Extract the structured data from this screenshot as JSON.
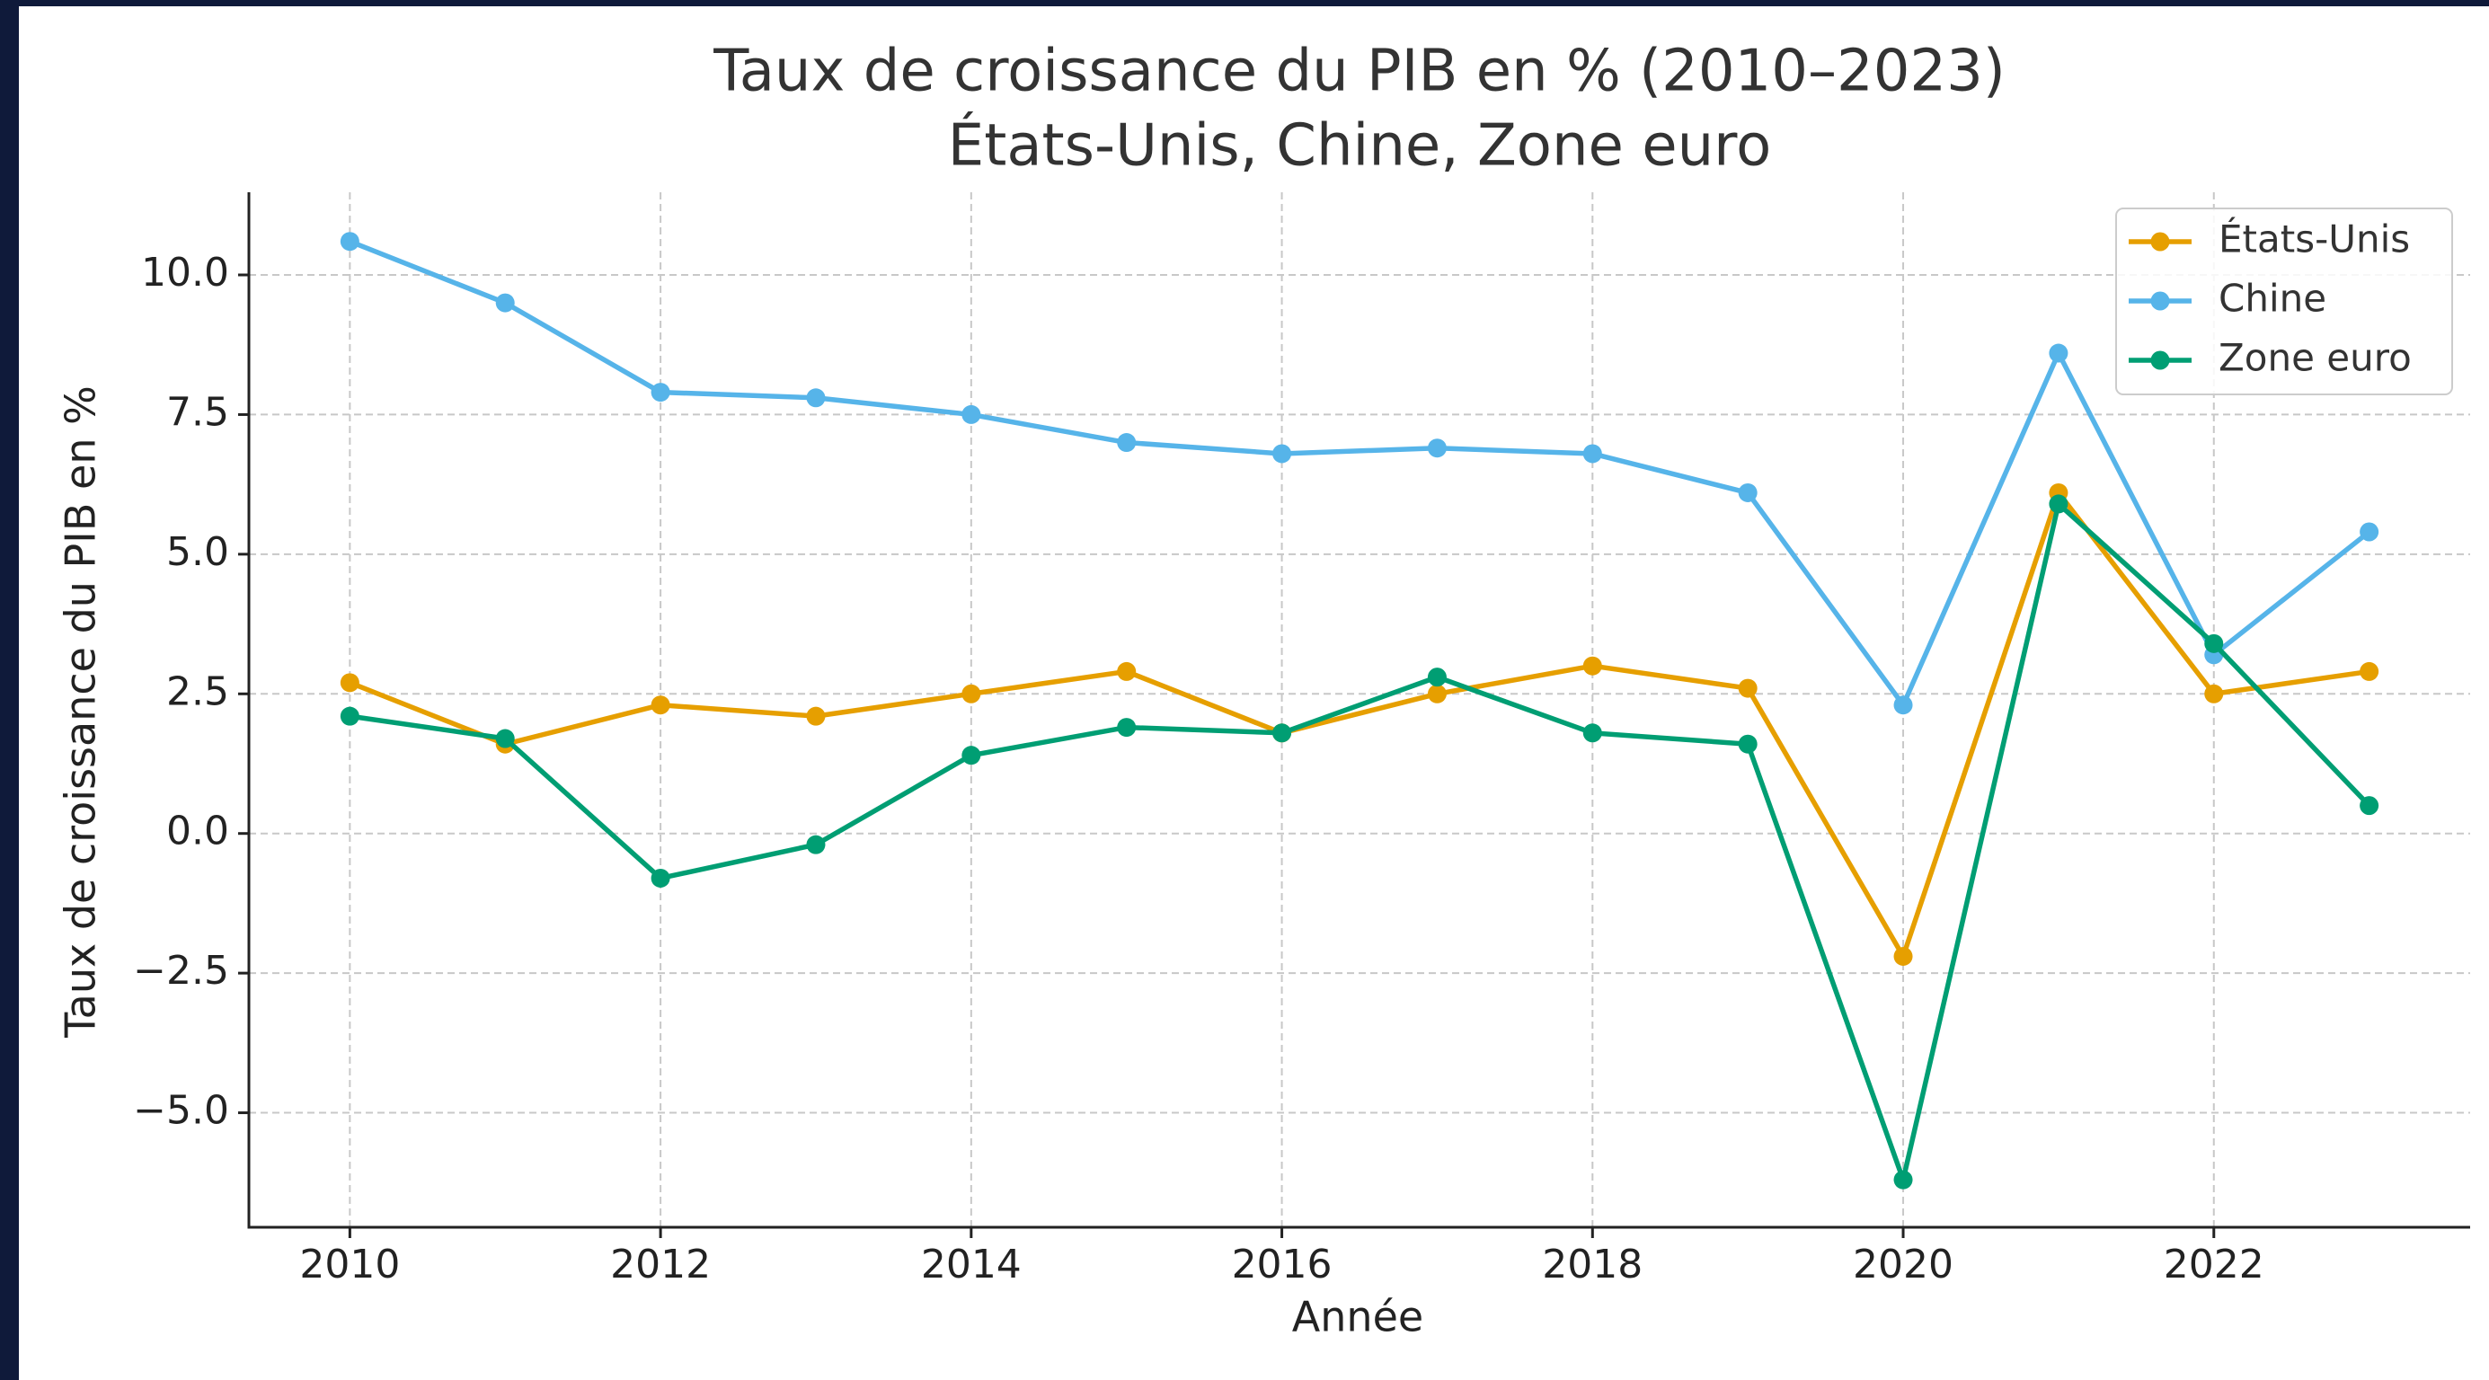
{
  "chart_data": {
    "type": "line",
    "title": "Taux de croissance du PIB en % (2010–2023)",
    "subtitle": "États-Unis, Chine, Zone euro",
    "xlabel": "Année",
    "ylabel": "Taux de croissance du PIB en %",
    "x": [
      2010,
      2011,
      2012,
      2013,
      2014,
      2015,
      2016,
      2017,
      2018,
      2019,
      2020,
      2021,
      2022,
      2023
    ],
    "series": [
      {
        "name": "États-Unis",
        "color": "#e69f00",
        "values": [
          2.7,
          1.6,
          2.3,
          2.1,
          2.5,
          2.9,
          1.8,
          2.5,
          3.0,
          2.6,
          -2.2,
          6.1,
          2.5,
          2.9
        ]
      },
      {
        "name": "Chine",
        "color": "#56b4e9",
        "values": [
          10.6,
          9.5,
          7.9,
          7.8,
          7.5,
          7.0,
          6.8,
          6.9,
          6.8,
          6.1,
          2.3,
          8.6,
          3.2,
          5.4
        ]
      },
      {
        "name": "Zone euro",
        "color": "#009e73",
        "values": [
          2.1,
          1.7,
          -0.8,
          -0.2,
          1.4,
          1.9,
          1.8,
          2.8,
          1.8,
          1.6,
          -6.2,
          5.9,
          3.4,
          0.5
        ]
      }
    ],
    "xlim": [
      2009.35,
      2023.65
    ],
    "xticks": [
      2010,
      2012,
      2014,
      2016,
      2018,
      2020,
      2022
    ],
    "ylim": [
      -7.05,
      11.48
    ],
    "yticks": [
      {
        "value": -5,
        "label": "−5.0"
      },
      {
        "value": -2.5,
        "label": "−2.5"
      },
      {
        "value": 0,
        "label": "0.0"
      },
      {
        "value": 2.5,
        "label": "2.5"
      },
      {
        "value": 5,
        "label": "5.0"
      },
      {
        "value": 7.5,
        "label": "7.5"
      },
      {
        "value": 10,
        "label": "10.0"
      }
    ],
    "grid": true,
    "legend": "upper right"
  }
}
